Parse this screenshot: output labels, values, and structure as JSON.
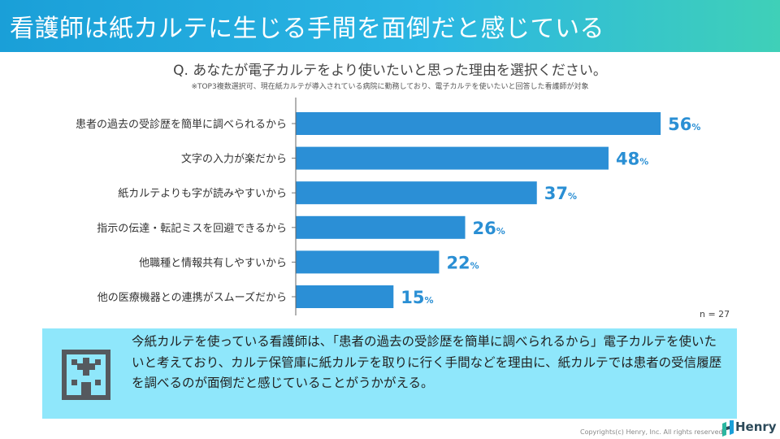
{
  "header": {
    "title": "看護師は紙カルテに生じる手間を面倒だと感じている"
  },
  "question": "Q. あなたが電子カルテをより使いたいと思った理由を選択ください。",
  "note": "※TOP3複数選択可、現在紙カルテが導入されている病院に勤務しており、電子カルテを使いたいと回答した看護師が対象",
  "chart_data": {
    "type": "bar",
    "orientation": "horizontal",
    "categories": [
      "患者の過去の受診歴を簡単に調べられるから",
      "文字の入力が楽だから",
      "紙カルテよりも字が読みやすいから",
      "指示の伝達・転記ミスを回避できるから",
      "他職種と情報共有しやすいから",
      "他の医療機器との連携がスムーズだから"
    ],
    "values": [
      56,
      48,
      37,
      26,
      22,
      15
    ],
    "unit": "%",
    "xlim": [
      0,
      100
    ],
    "grid": false,
    "bar_color": "#2b8fd6",
    "label_color": "#2a8fd4"
  },
  "sample": "n = 27",
  "summary": {
    "icon": "hospital-icon",
    "text": "今紙カルテを使っている看護師は、「患者の過去の受診歴を簡単に調べられるから」電子カルテを使いたいと考えており、カルテ保管庫に紙カルテを取りに行く手間などを理由に、紙カルテでは患者の受信履歴を調べるのが面倒だと感じていることがうかがえる。"
  },
  "footer": {
    "copyright": "Copyrights(c) Henry, Inc. All rights reserved.",
    "logo": "Henry"
  }
}
